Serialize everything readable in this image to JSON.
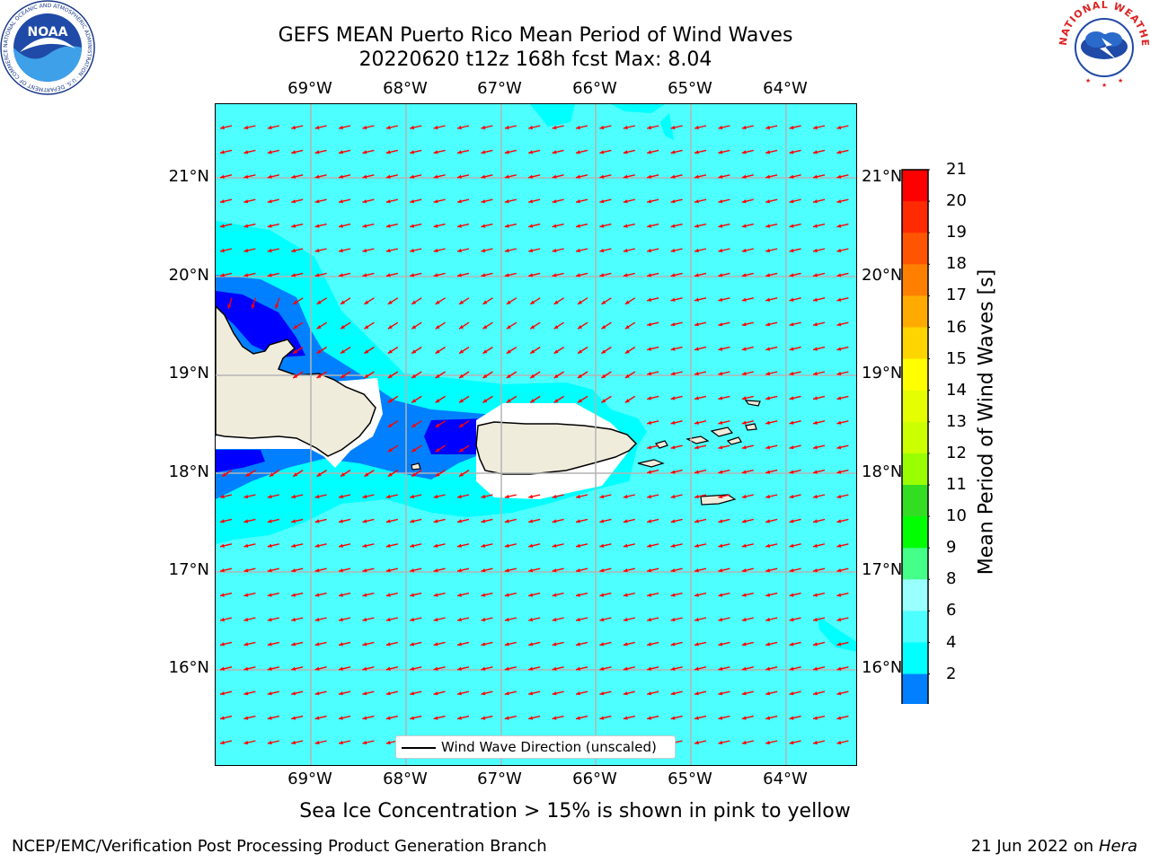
{
  "title_line1": "GEFS MEAN Puerto Rico Mean Period of Wind Waves",
  "title_line2": "20220620 t12z 168h fcst   Max: 8.04",
  "lon_labels": [
    "69°W",
    "68°W",
    "67°W",
    "66°W",
    "65°W",
    "64°W"
  ],
  "lat_labels": [
    "21°N",
    "20°N",
    "19°N",
    "18°N",
    "17°N",
    "16°N"
  ],
  "legend_label": "Wind Wave Direction (unscaled)",
  "colorbar": {
    "title": "Mean Period of Wind Waves [s]",
    "ticks": [
      "21",
      "20",
      "19",
      "18",
      "17",
      "16",
      "15",
      "14",
      "13",
      "12",
      "11",
      "10",
      "9",
      "8",
      "6",
      "4",
      "2"
    ],
    "colors": [
      "#ff0000",
      "#ff2a00",
      "#ff5500",
      "#ff8000",
      "#ffaa00",
      "#ffd500",
      "#ffff00",
      "#e6ff00",
      "#ccff00",
      "#99ff00",
      "#33dd22",
      "#00ff00",
      "#44ff88",
      "#99ffff",
      "#4dffff",
      "#00ffff",
      "#0080ff"
    ],
    "extend_color": "#0000ff"
  },
  "colors": {
    "land": "#f0ecdc",
    "ocean_main": "#4dffff",
    "ocean_light": "#00ffff",
    "ocean_mid": "#0080ff",
    "ocean_deep": "#0000ff",
    "arrow": "#ff0000",
    "grid": "#b4b4b4"
  },
  "ice_note": "Sea Ice Concentration > 15% is shown in pink to yellow",
  "footer_left": "NCEP/EMC/Verification Post Processing Product Generation Branch",
  "footer_right_date": "21 Jun 2022 on",
  "footer_right_host": "Hera",
  "noaa_logo": {
    "icon": "noaa-logo",
    "text": "NOAA",
    "ring_text": "NATIONAL OCEANIC AND ATMOSPHERIC ADMINISTRATION · U.S. DEPARTMENT OF COMMERCE"
  },
  "nws_logo": {
    "icon": "nws-logo",
    "ring_text": "NATIONAL WEATHER SERVICE"
  }
}
